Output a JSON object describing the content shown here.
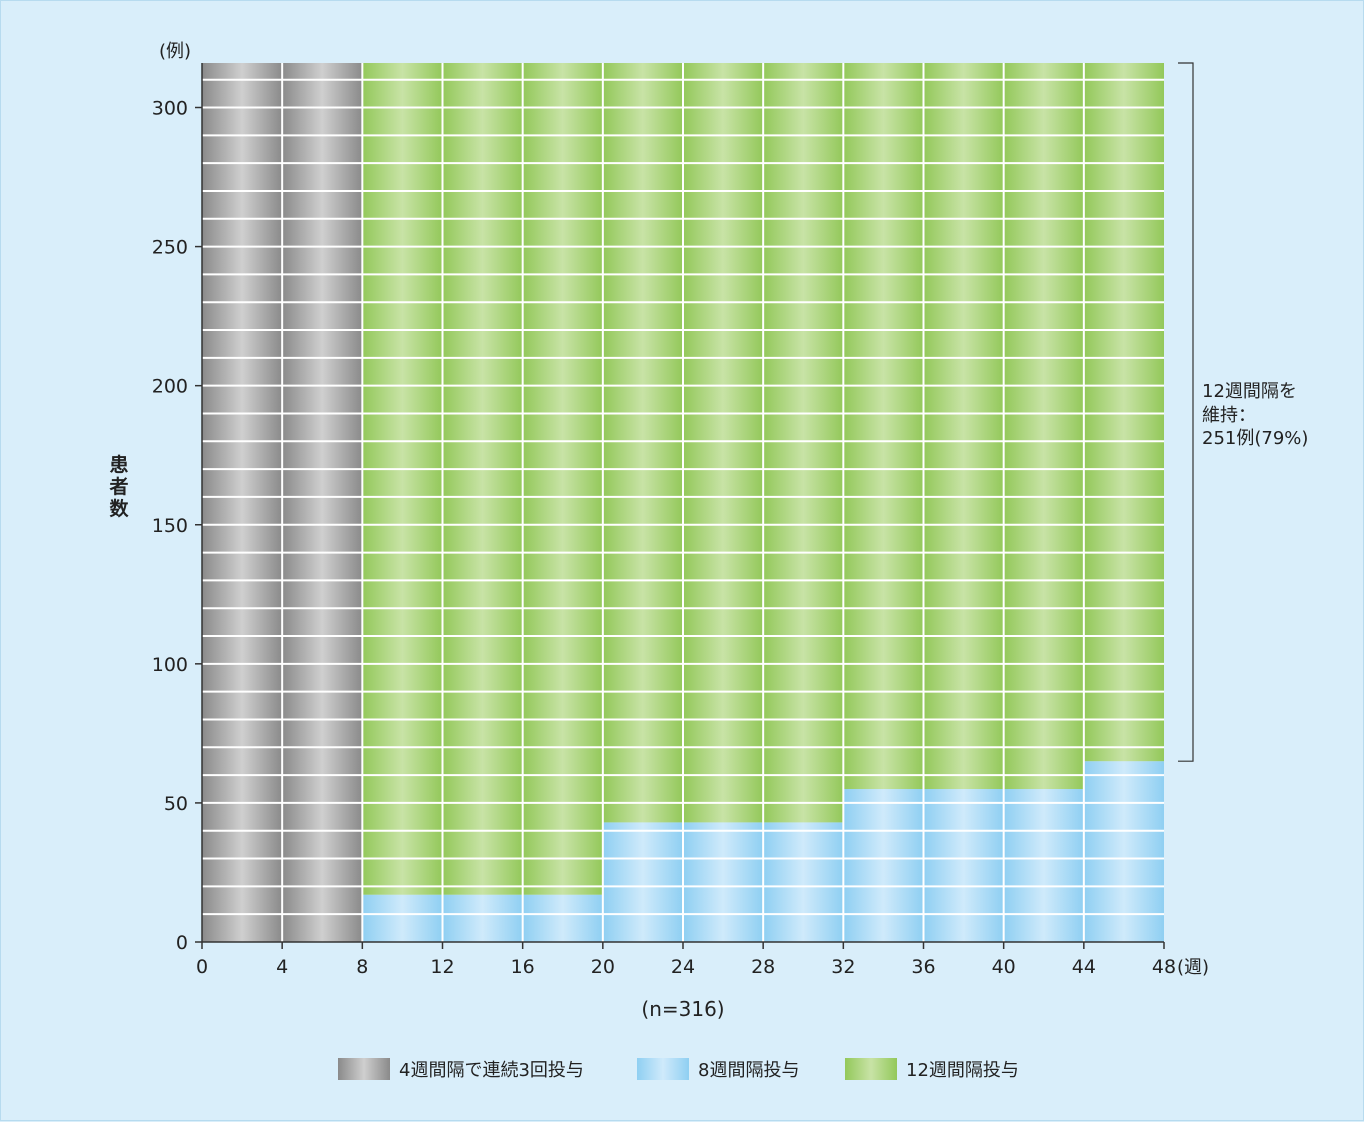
{
  "chart_data": {
    "type": "bar",
    "stacked": true,
    "x_unit": "(週)",
    "y_unit": "(例)",
    "ylabel": "患者数",
    "xlim": [
      0,
      48
    ],
    "ylim": [
      0,
      316
    ],
    "x_ticks": [
      "0",
      "4",
      "8",
      "12",
      "16",
      "20",
      "24",
      "28",
      "32",
      "36",
      "40",
      "44",
      "48"
    ],
    "y_ticks": [
      "0",
      "50",
      "100",
      "150",
      "200",
      "250",
      "300"
    ],
    "intervals": [
      {
        "start": 0,
        "end": 4
      },
      {
        "start": 4,
        "end": 8
      },
      {
        "start": 8,
        "end": 12
      },
      {
        "start": 12,
        "end": 16
      },
      {
        "start": 16,
        "end": 20
      },
      {
        "start": 20,
        "end": 24
      },
      {
        "start": 24,
        "end": 28
      },
      {
        "start": 28,
        "end": 32
      },
      {
        "start": 32,
        "end": 36
      },
      {
        "start": 36,
        "end": 40
      },
      {
        "start": 40,
        "end": 44
      },
      {
        "start": 44,
        "end": 48
      }
    ],
    "series": [
      {
        "name": "4週間隔で連続3回投与",
        "color": "#9e9e9e",
        "values": [
          316,
          316,
          0,
          0,
          0,
          0,
          0,
          0,
          0,
          0,
          0,
          0
        ]
      },
      {
        "name": "8週間隔投与",
        "color": "#8fcff2",
        "values": [
          0,
          0,
          17,
          17,
          17,
          43,
          43,
          43,
          55,
          55,
          55,
          65
        ]
      },
      {
        "name": "12週間隔投与",
        "color": "#9ccc65",
        "values": [
          0,
          0,
          299,
          299,
          299,
          273,
          273,
          273,
          261,
          261,
          261,
          251
        ]
      }
    ],
    "band_step": 10,
    "annotation": {
      "lines": [
        "12週間隔を",
        "維持：",
        "251例(79%)"
      ],
      "bracket_from": 65,
      "bracket_to": 316
    },
    "n_label": "(n=316)",
    "legend_position": "bottom",
    "grid": false
  }
}
